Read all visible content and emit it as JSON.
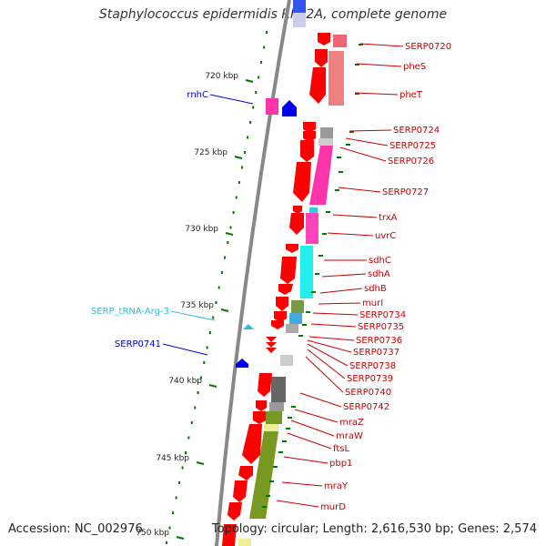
{
  "title": "Staphylococcus epidermidis RP62A, complete genome",
  "footer": {
    "accession": "Accession: NC_002976",
    "summary": "Topology: circular; Length: 2,616,530 bp; Genes: 2,574"
  },
  "colors": {
    "cds": "#ff0000",
    "label_red": "#cc0000",
    "label_blue": "#0000cc",
    "label_cyan": "#33bbdd",
    "tick": "#007700",
    "backbone": "#888888"
  },
  "ticks": [
    {
      "label": "720 kbp",
      "kbp": 720
    },
    {
      "label": "725 kbp",
      "kbp": 725
    },
    {
      "label": "730 kbp",
      "kbp": 730
    },
    {
      "label": "735 kbp",
      "kbp": 735
    },
    {
      "label": "740 kbp",
      "kbp": 740
    },
    {
      "label": "745 kbp",
      "kbp": 745
    },
    {
      "label": "750 kbp",
      "kbp": 750
    }
  ],
  "right_labels": [
    "SERP0720",
    "pheS",
    "pheT",
    "SERP0724",
    "SERP0725",
    "SERP0726",
    "SERP0727",
    "trxA",
    "uvrC",
    "sdhC",
    "sdhA",
    "sdhB",
    "murI",
    "SERP0734",
    "SERP0735",
    "SERP0736",
    "SERP0737",
    "SERP0738",
    "SERP0739",
    "SERP0740",
    "SERP0742",
    "mraZ",
    "mraW",
    "ftsL",
    "pbp1",
    "mraY",
    "murD"
  ],
  "left_labels": [
    {
      "text": "rnhC",
      "kind": "blue"
    },
    {
      "text": "SERP_tRNA-Arg-3",
      "kind": "cyan"
    },
    {
      "text": "SERP0741",
      "kind": "blue"
    }
  ]
}
